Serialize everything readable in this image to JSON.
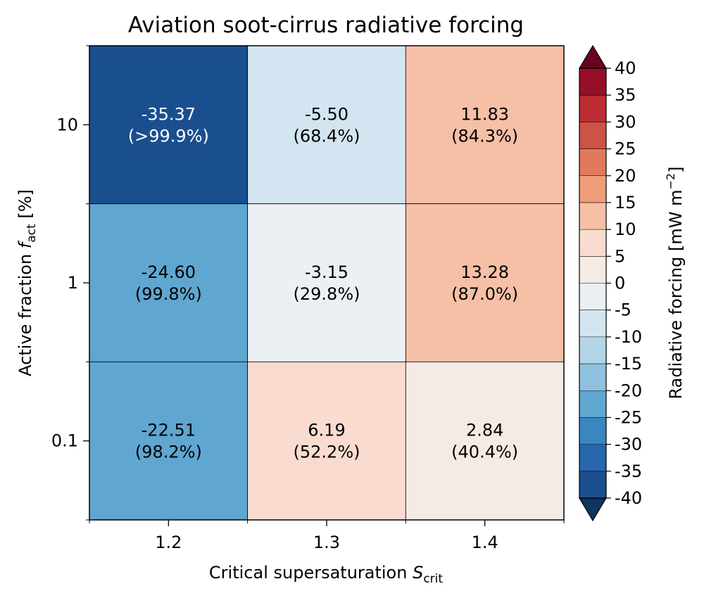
{
  "chart_data": {
    "type": "heatmap",
    "title": "Aviation soot-cirrus radiative forcing",
    "xlabel_main": "Critical supersaturation ",
    "xlabel_symbol": "S",
    "xlabel_sub": "crit",
    "ylabel_main": "Active fraction ",
    "ylabel_symbol": "f",
    "ylabel_sub": "act",
    "ylabel_unit": " [%]",
    "x_categories": [
      "1.2",
      "1.3",
      "1.4"
    ],
    "y_categories": [
      "10",
      "1",
      "0.1"
    ],
    "cells": [
      {
        "x": "1.2",
        "y": "10",
        "value": -35.37,
        "value_label": "-35.37",
        "pct_label": "(>99.9%)"
      },
      {
        "x": "1.3",
        "y": "10",
        "value": -5.5,
        "value_label": "-5.50",
        "pct_label": "(68.4%)"
      },
      {
        "x": "1.4",
        "y": "10",
        "value": 11.83,
        "value_label": "11.83",
        "pct_label": "(84.3%)"
      },
      {
        "x": "1.2",
        "y": "1",
        "value": -24.6,
        "value_label": "-24.60",
        "pct_label": "(99.8%)"
      },
      {
        "x": "1.3",
        "y": "1",
        "value": -3.15,
        "value_label": "-3.15",
        "pct_label": "(29.8%)"
      },
      {
        "x": "1.4",
        "y": "1",
        "value": 13.28,
        "value_label": "13.28",
        "pct_label": "(87.0%)"
      },
      {
        "x": "1.2",
        "y": "0.1",
        "value": -22.51,
        "value_label": "-22.51",
        "pct_label": "(98.2%)"
      },
      {
        "x": "1.3",
        "y": "0.1",
        "value": 6.19,
        "value_label": "6.19",
        "pct_label": "(52.2%)"
      },
      {
        "x": "1.4",
        "y": "0.1",
        "value": 2.84,
        "value_label": "2.84",
        "pct_label": "(40.4%)"
      }
    ],
    "colorbar": {
      "label_main": "Radiative forcing [mW m",
      "label_sup": "−2",
      "label_end": "]",
      "min": -40,
      "max": 40,
      "step": 5,
      "ticks": [
        "40",
        "35",
        "30",
        "25",
        "20",
        "15",
        "10",
        "5",
        "0",
        "-5",
        "-10",
        "-15",
        "-20",
        "-25",
        "-30",
        "-35",
        "-40"
      ],
      "extend": "both",
      "colors": [
        "#1a4f8f",
        "#2866ad",
        "#3a86c0",
        "#5fa6d0",
        "#8fc2de",
        "#b3d5e8",
        "#d3e5f0",
        "#ebf0f4",
        "#f5ebe5",
        "#f9dccf",
        "#f5c0a6",
        "#ef9d79",
        "#e07a5f",
        "#cd5346",
        "#bb2d33",
        "#960f26"
      ],
      "under_color": "#0e3461",
      "over_color": "#6a0220"
    },
    "grid": false,
    "colorbar_position": "right"
  }
}
